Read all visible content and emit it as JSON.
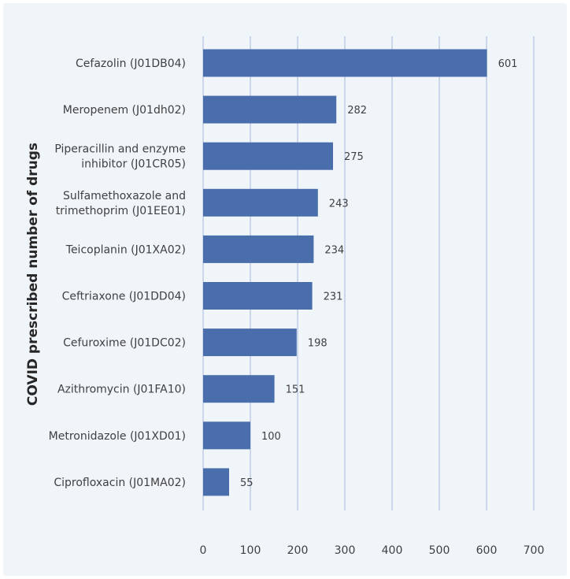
{
  "chart_data": {
    "type": "bar",
    "orientation": "horizontal",
    "ylabel": "COVID prescribed number of drugs",
    "xlabel": "",
    "xlim": [
      0,
      700
    ],
    "xticks": [
      0,
      100,
      200,
      300,
      400,
      500,
      600,
      700
    ],
    "grid": "vertical",
    "bar_color": "#4a6eab",
    "categories": [
      [
        "Cefazolin (J01DB04)"
      ],
      [
        "Meropenem (J01dh02)"
      ],
      [
        "Piperacillin and enzyme",
        "inhibitor (J01CR05)"
      ],
      [
        "Sulfamethoxazole and",
        "trimethoprim (J01EE01)"
      ],
      [
        "Teicoplanin (J01XA02)"
      ],
      [
        "Ceftriaxone (J01DD04)"
      ],
      [
        "Cefuroxime (J01DC02)"
      ],
      [
        "Azithromycin (J01FA10)"
      ],
      [
        "Metronidazole (J01XD01)"
      ],
      [
        "Ciprofloxacin (J01MA02)"
      ]
    ],
    "values": [
      601,
      282,
      275,
      243,
      234,
      231,
      198,
      151,
      100,
      55
    ]
  }
}
